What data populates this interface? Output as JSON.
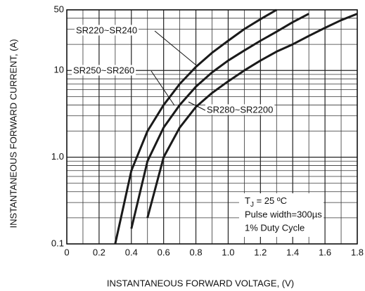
{
  "chart_data": {
    "type": "line",
    "xlabel": "INSTANTANEOUS FORWARD VOLTAGE, (V)",
    "ylabel": "INSTANTANEOUS  FORWARD CURRENT, (A)",
    "x": [
      0.3,
      0.4,
      0.5,
      0.6,
      0.7,
      0.8,
      0.9,
      1.0,
      1.1,
      1.2,
      1.3,
      1.4,
      1.5,
      1.6,
      1.7,
      1.8
    ],
    "series": [
      {
        "name": "SR220~SR240",
        "color": "#1a1a1a",
        "values": [
          0.1,
          0.7,
          2,
          4,
          7,
          11,
          16,
          22,
          30,
          39,
          50,
          null,
          null,
          null,
          null,
          null
        ]
      },
      {
        "name": "SR250~SR260",
        "color": "#1a1a1a",
        "values": [
          null,
          0.15,
          0.9,
          2.2,
          4,
          6.5,
          9.5,
          13,
          17,
          22,
          28,
          36,
          45,
          null,
          null,
          null
        ]
      },
      {
        "name": "SR280~SR2200",
        "color": "#1a1a1a",
        "values": [
          null,
          null,
          0.2,
          1.0,
          2.2,
          3.8,
          5.5,
          7.5,
          10,
          13,
          16.5,
          20,
          25,
          31,
          38,
          45
        ]
      }
    ],
    "xlim": [
      0,
      1.8
    ],
    "xticks": [
      0,
      0.2,
      0.4,
      0.6,
      0.8,
      {
        "value": 1,
        "label": "1.0"
      },
      1.2,
      1.4,
      1.6,
      1.8
    ],
    "xminor": [
      0.1,
      0.3,
      0.5,
      0.7,
      0.9,
      1.1,
      1.3,
      1.5,
      1.7
    ],
    "ylim": [
      0.1,
      50
    ],
    "yticks": [
      0.1,
      {
        "value": 1,
        "label": "1.0"
      },
      10,
      50
    ],
    "yminor": [
      0.2,
      0.3,
      0.4,
      0.5,
      0.6,
      0.7,
      0.8,
      0.9,
      2,
      3,
      4,
      5,
      6,
      7,
      8,
      9,
      20,
      30,
      40
    ],
    "ylog": true,
    "grid": true,
    "annotation": {
      "symbol": "T",
      "sub": "J",
      "text": " = 25 ºC",
      "lines": [
        "Pulse width=300µs",
        "1% Duty Cycle"
      ]
    }
  }
}
